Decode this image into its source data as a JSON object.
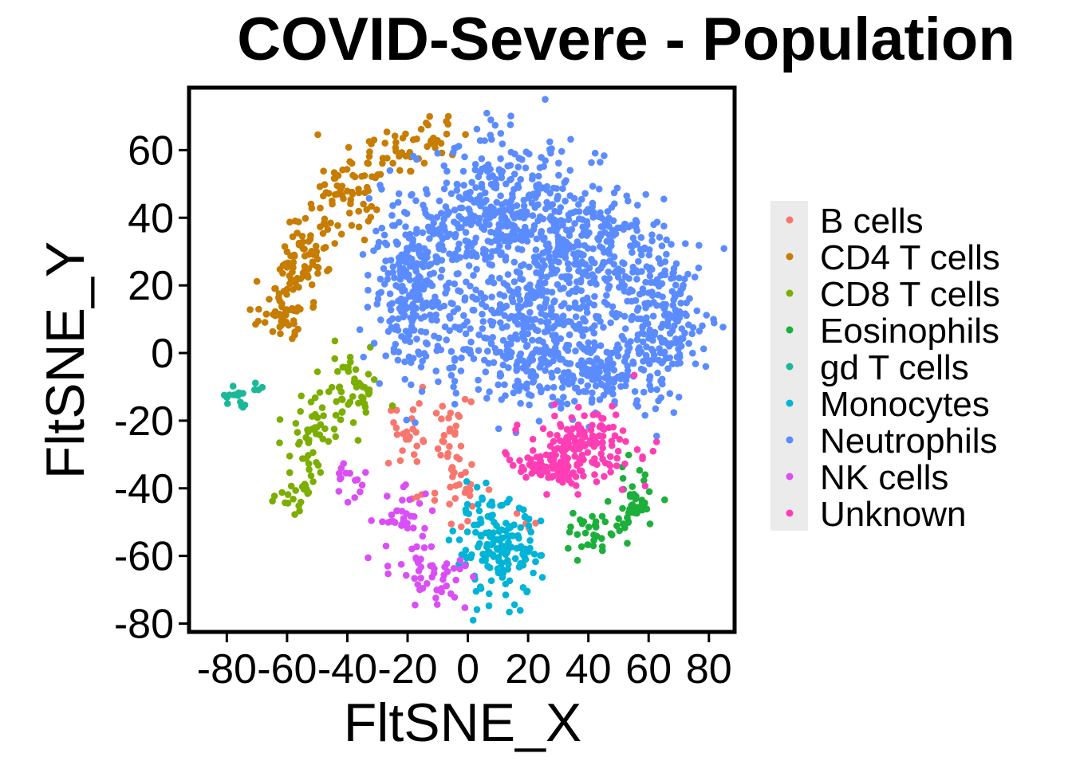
{
  "chart_data": {
    "type": "scatter",
    "title": "COVID-Severe - Population",
    "xlabel": "FltSNE_X",
    "ylabel": "FltSNE_Y",
    "xlim": [
      -92,
      88
    ],
    "ylim": [
      -82,
      78
    ],
    "xticks": [
      -80,
      -60,
      -40,
      -20,
      0,
      20,
      40,
      60,
      80
    ],
    "yticks": [
      -80,
      -60,
      -40,
      -20,
      0,
      20,
      40,
      60
    ],
    "grid": false,
    "legend_position": "right",
    "series": [
      {
        "name": "B cells",
        "color": "#F8766D",
        "clusters": [
          {
            "cx": -20,
            "cy": -25,
            "sx": 5,
            "sy": 5,
            "n": 25
          },
          {
            "cx": -5,
            "cy": -28,
            "sx": 3,
            "sy": 7,
            "n": 30
          },
          {
            "cx": 0,
            "cy": -38,
            "sx": 3,
            "sy": 3,
            "n": 12
          },
          {
            "cx": -12,
            "cy": -45,
            "sx": 6,
            "sy": 3,
            "n": 10
          },
          {
            "cx": 20,
            "cy": -50,
            "sx": 2,
            "sy": 2,
            "n": 4
          }
        ]
      },
      {
        "name": "CD4 T cells",
        "color": "#C77C02",
        "clusters": [
          {
            "cx": -62,
            "cy": 10,
            "sx": 4,
            "sy": 3,
            "n": 40
          },
          {
            "cx": -57,
            "cy": 22,
            "sx": 4,
            "sy": 6,
            "n": 40
          },
          {
            "cx": -52,
            "cy": 32,
            "sx": 5,
            "sy": 6,
            "n": 45
          },
          {
            "cx": -42,
            "cy": 45,
            "sx": 5,
            "sy": 6,
            "n": 50
          },
          {
            "cx": -28,
            "cy": 58,
            "sx": 8,
            "sy": 4,
            "n": 45
          },
          {
            "cx": -12,
            "cy": 64,
            "sx": 5,
            "sy": 3,
            "n": 20
          }
        ]
      },
      {
        "name": "CD8 T cells",
        "color": "#7CAE00",
        "clusters": [
          {
            "cx": -38,
            "cy": -10,
            "sx": 5,
            "sy": 5,
            "n": 45
          },
          {
            "cx": -50,
            "cy": -20,
            "sx": 5,
            "sy": 5,
            "n": 35
          },
          {
            "cx": -55,
            "cy": -30,
            "sx": 3,
            "sy": 4,
            "n": 15
          },
          {
            "cx": -58,
            "cy": -42,
            "sx": 5,
            "sy": 4,
            "n": 22
          }
        ]
      },
      {
        "name": "Eosinophils",
        "color": "#1DAF3B",
        "clusters": [
          {
            "cx": 55,
            "cy": -45,
            "sx": 4,
            "sy": 5,
            "n": 50
          },
          {
            "cx": 40,
            "cy": -54,
            "sx": 3,
            "sy": 3,
            "n": 30
          }
        ]
      },
      {
        "name": "gd T cells",
        "color": "#1BB898",
        "clusters": [
          {
            "cx": -75,
            "cy": -12,
            "sx": 4,
            "sy": 3,
            "n": 18
          }
        ]
      },
      {
        "name": "Monocytes",
        "color": "#00B4D8",
        "clusters": [
          {
            "cx": 10,
            "cy": -58,
            "sx": 7,
            "sy": 7,
            "n": 160
          }
        ]
      },
      {
        "name": "Neutrophils",
        "color": "#5B8CFF",
        "clusters": [
          {
            "cx": -18,
            "cy": 20,
            "sx": 7,
            "sy": 12,
            "n": 250
          },
          {
            "cx": 10,
            "cy": 40,
            "sx": 13,
            "sy": 11,
            "n": 380
          },
          {
            "cx": 40,
            "cy": 30,
            "sx": 13,
            "sy": 11,
            "n": 320
          },
          {
            "cx": 65,
            "cy": 10,
            "sx": 8,
            "sy": 9,
            "n": 170
          },
          {
            "cx": 15,
            "cy": 5,
            "sx": 14,
            "sy": 10,
            "n": 300
          },
          {
            "cx": 45,
            "cy": -5,
            "sx": 12,
            "sy": 7,
            "n": 200
          }
        ]
      },
      {
        "name": "NK cells",
        "color": "#DA4FF5",
        "clusters": [
          {
            "cx": -40,
            "cy": -38,
            "sx": 3,
            "sy": 3,
            "n": 15
          },
          {
            "cx": -22,
            "cy": -48,
            "sx": 6,
            "sy": 4,
            "n": 30
          },
          {
            "cx": -18,
            "cy": -62,
            "sx": 5,
            "sy": 4,
            "n": 18
          },
          {
            "cx": -10,
            "cy": -68,
            "sx": 5,
            "sy": 4,
            "n": 30
          }
        ]
      },
      {
        "name": "Unknown",
        "color": "#FF3EB5",
        "clusters": [
          {
            "cx": 38,
            "cy": -28,
            "sx": 9,
            "sy": 5,
            "n": 150
          },
          {
            "cx": 25,
            "cy": -34,
            "sx": 6,
            "sy": 2,
            "n": 60
          },
          {
            "cx": 48,
            "cy": -18,
            "sx": 2,
            "sy": 2,
            "n": 5
          }
        ]
      }
    ]
  }
}
